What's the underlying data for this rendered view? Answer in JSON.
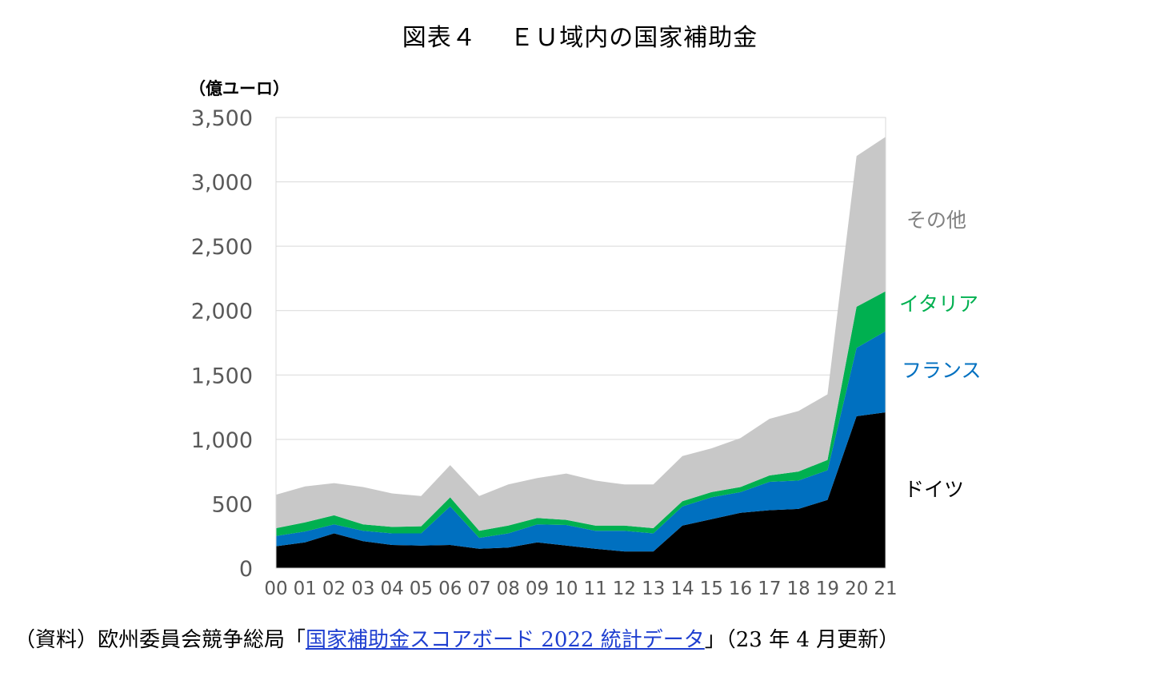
{
  "title": "図表４　 ＥＵ域内の国家補助金",
  "unit_label": "（億ユーロ）",
  "source": {
    "prefix": "（資料）欧州委員会競争総局「",
    "link_text": "国家補助金スコアボード 2022 統計データ",
    "suffix": "」（23 年 4 月更新）"
  },
  "chart_data": {
    "type": "area",
    "stacked": true,
    "categories": [
      "00",
      "01",
      "02",
      "03",
      "04",
      "05",
      "06",
      "07",
      "08",
      "09",
      "10",
      "11",
      "12",
      "13",
      "14",
      "15",
      "16",
      "17",
      "18",
      "19",
      "20",
      "21"
    ],
    "ylim": [
      0,
      3500
    ],
    "yticks": [
      0,
      500,
      1000,
      1500,
      2000,
      2500,
      3000,
      3500
    ],
    "ytick_labels": [
      "0",
      "500",
      "1,000",
      "1,500",
      "2,000",
      "2,500",
      "3,000",
      "3,500"
    ],
    "grid": true,
    "legend": "right, labels beside series",
    "series": [
      {
        "name": "ドイツ",
        "color": "#000000",
        "values": [
          170,
          200,
          270,
          210,
          180,
          175,
          180,
          150,
          160,
          200,
          175,
          150,
          130,
          130,
          330,
          380,
          430,
          450,
          460,
          530,
          1180,
          1210
        ]
      },
      {
        "name": "フランス",
        "color": "#0070c0",
        "values": [
          80,
          85,
          70,
          80,
          90,
          95,
          300,
          85,
          110,
          140,
          160,
          140,
          160,
          140,
          150,
          170,
          160,
          220,
          220,
          230,
          530,
          630
        ]
      },
      {
        "name": "イタリア",
        "color": "#00b050",
        "values": [
          60,
          70,
          70,
          50,
          50,
          55,
          70,
          55,
          60,
          50,
          40,
          40,
          40,
          40,
          40,
          40,
          40,
          50,
          70,
          80,
          320,
          310
        ]
      },
      {
        "name": "その他",
        "color": "#c8c8c8",
        "values": [
          260,
          280,
          250,
          290,
          260,
          235,
          250,
          270,
          320,
          310,
          360,
          350,
          320,
          340,
          350,
          340,
          380,
          440,
          470,
          510,
          1170,
          1200
        ]
      }
    ]
  }
}
